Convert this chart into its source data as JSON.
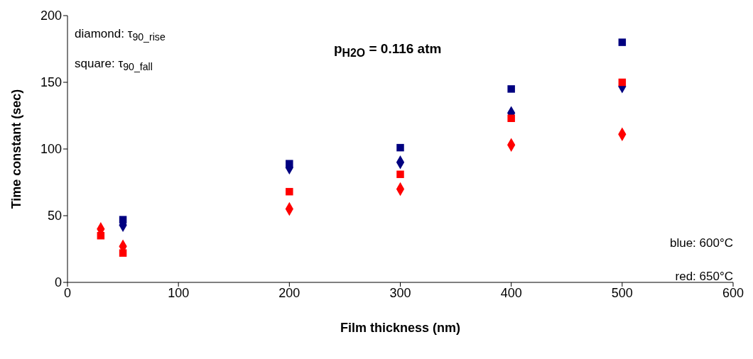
{
  "chart_data": {
    "type": "scatter",
    "xlabel": "Film thickness (nm)",
    "ylabel": "Time constant (sec)",
    "xlim": [
      0,
      600
    ],
    "xticks": [
      0,
      100,
      200,
      300,
      400,
      500,
      600
    ],
    "ylim": [
      0,
      200
    ],
    "yticks": [
      0,
      50,
      100,
      150,
      200
    ],
    "grid": false,
    "annotations": [
      "diamond: τ$_{90_rise}$",
      "square: τ$_{90_fall}$",
      "p$_{H2O}$ = 0.116 atm",
      "blue: 600°C",
      "red: 650°C"
    ],
    "series": [
      {
        "color": "#000080",
        "marker": "square",
        "x": [
          50,
          200,
          300,
          400,
          500
        ],
        "values": [
          47,
          89,
          101,
          145,
          180
        ]
      },
      {
        "color": "#000080",
        "marker": "diamond",
        "x": [
          50,
          200,
          300,
          400,
          500
        ],
        "values": [
          43,
          86,
          90,
          127,
          147
        ]
      },
      {
        "color": "#ff0000",
        "marker": "square",
        "x": [
          30,
          50,
          200,
          300,
          400,
          500
        ],
        "values": [
          35,
          22,
          68,
          81,
          123,
          150
        ]
      },
      {
        "color": "#ff0000",
        "marker": "diamond",
        "x": [
          30,
          50,
          200,
          300,
          400,
          500
        ],
        "values": [
          40,
          27,
          55,
          70,
          103,
          111
        ]
      }
    ]
  }
}
